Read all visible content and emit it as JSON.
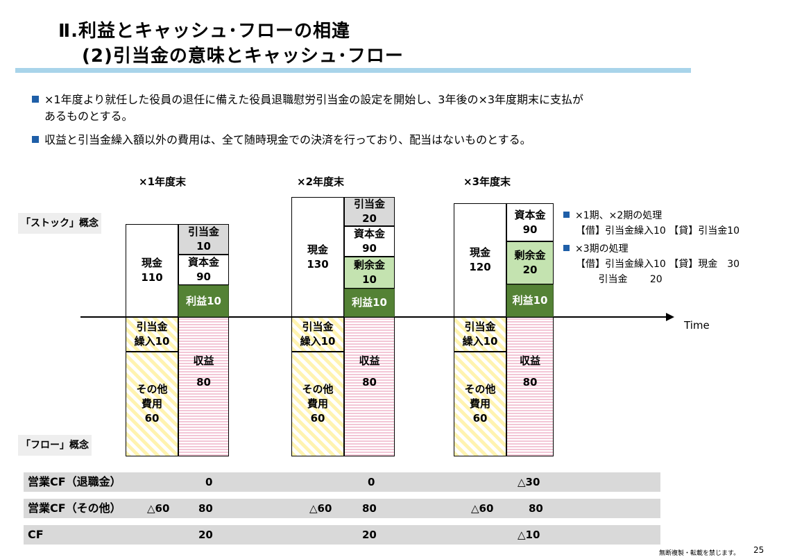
{
  "title": {
    "line1": "Ⅱ.利益とキャッシュ･フローの相違",
    "line2": "(2)引当金の意味とキャッシュ･フロー"
  },
  "bullets": [
    {
      "line1": "×1年度より就任した役員の退任に備えた役員退職慰労引当金の設定を開始し、3年後の×3年度期末に支払が",
      "line2": "あるものとする。"
    },
    {
      "line1": "収益と引当金繰入額以外の費用は、全て随時現金での決済を行っており、配当はないものとする。",
      "line2": ""
    }
  ],
  "concepts": {
    "stock": "「ストック」概念",
    "flow": "「フロー」概念"
  },
  "axis_label": "Time",
  "years": [
    {
      "label": "×1年度末",
      "cash_label": "現金",
      "cash_value": "110",
      "stock_right": [
        {
          "label": "引当金",
          "value": "10"
        },
        {
          "label": "資本金",
          "value": "90"
        }
      ],
      "profit": "利益10",
      "provision": {
        "label": "引当金",
        "value": "繰入10"
      },
      "other": {
        "l1": "その他",
        "l2": "費用",
        "l3": "60"
      },
      "revenue": {
        "label": "収益",
        "value": "80"
      }
    },
    {
      "label": "×2年度末",
      "cash_label": "現金",
      "cash_value": "130",
      "stock_right": [
        {
          "label": "引当金",
          "value": "20"
        },
        {
          "label": "資本金",
          "value": "90"
        },
        {
          "label": "剰余金",
          "value": "10"
        }
      ],
      "profit": "利益10",
      "provision": {
        "label": "引当金",
        "value": "繰入10"
      },
      "other": {
        "l1": "その他",
        "l2": "費用",
        "l3": "60"
      },
      "revenue": {
        "label": "収益",
        "value": "80"
      }
    },
    {
      "label": "×3年度末",
      "cash_label": "現金",
      "cash_value": "120",
      "stock_right": [
        {
          "label": "資本金",
          "value": "90"
        },
        {
          "label": "剰余金",
          "value": "20"
        }
      ],
      "profit": "利益10",
      "provision": {
        "label": "引当金",
        "value": "繰入10"
      },
      "other": {
        "l1": "その他",
        "l2": "費用",
        "l3": "60"
      },
      "revenue": {
        "label": "収益",
        "value": "80"
      }
    }
  ],
  "notes": [
    {
      "heading": "×1期、×2期の処理",
      "lines": [
        "【借】引当金繰入10 【貸】引当金10"
      ]
    },
    {
      "heading": "×3期の処理",
      "lines": [
        "【借】引当金繰入10 【貸】現金　30",
        "　　 引当金　　 20"
      ]
    }
  ],
  "cf_table": [
    {
      "label": "営業CF（退職金）",
      "cells": [
        "",
        "0",
        "",
        "0",
        "",
        "△30"
      ]
    },
    {
      "label": "営業CF（その他）",
      "cells": [
        "△60",
        "80",
        "△60",
        "80",
        "△60",
        "80"
      ]
    },
    {
      "label": "CF",
      "cells": [
        "",
        "20",
        "",
        "20",
        "",
        "△10"
      ]
    }
  ],
  "footer": {
    "notice": "無断複製・転載を禁じます。",
    "page": "25"
  },
  "colors": {
    "accent_bar": "#a8d4ea",
    "bullet": "#1f5fa8",
    "profit_green": "#548235",
    "surplus_green": "#c4e3b0"
  }
}
